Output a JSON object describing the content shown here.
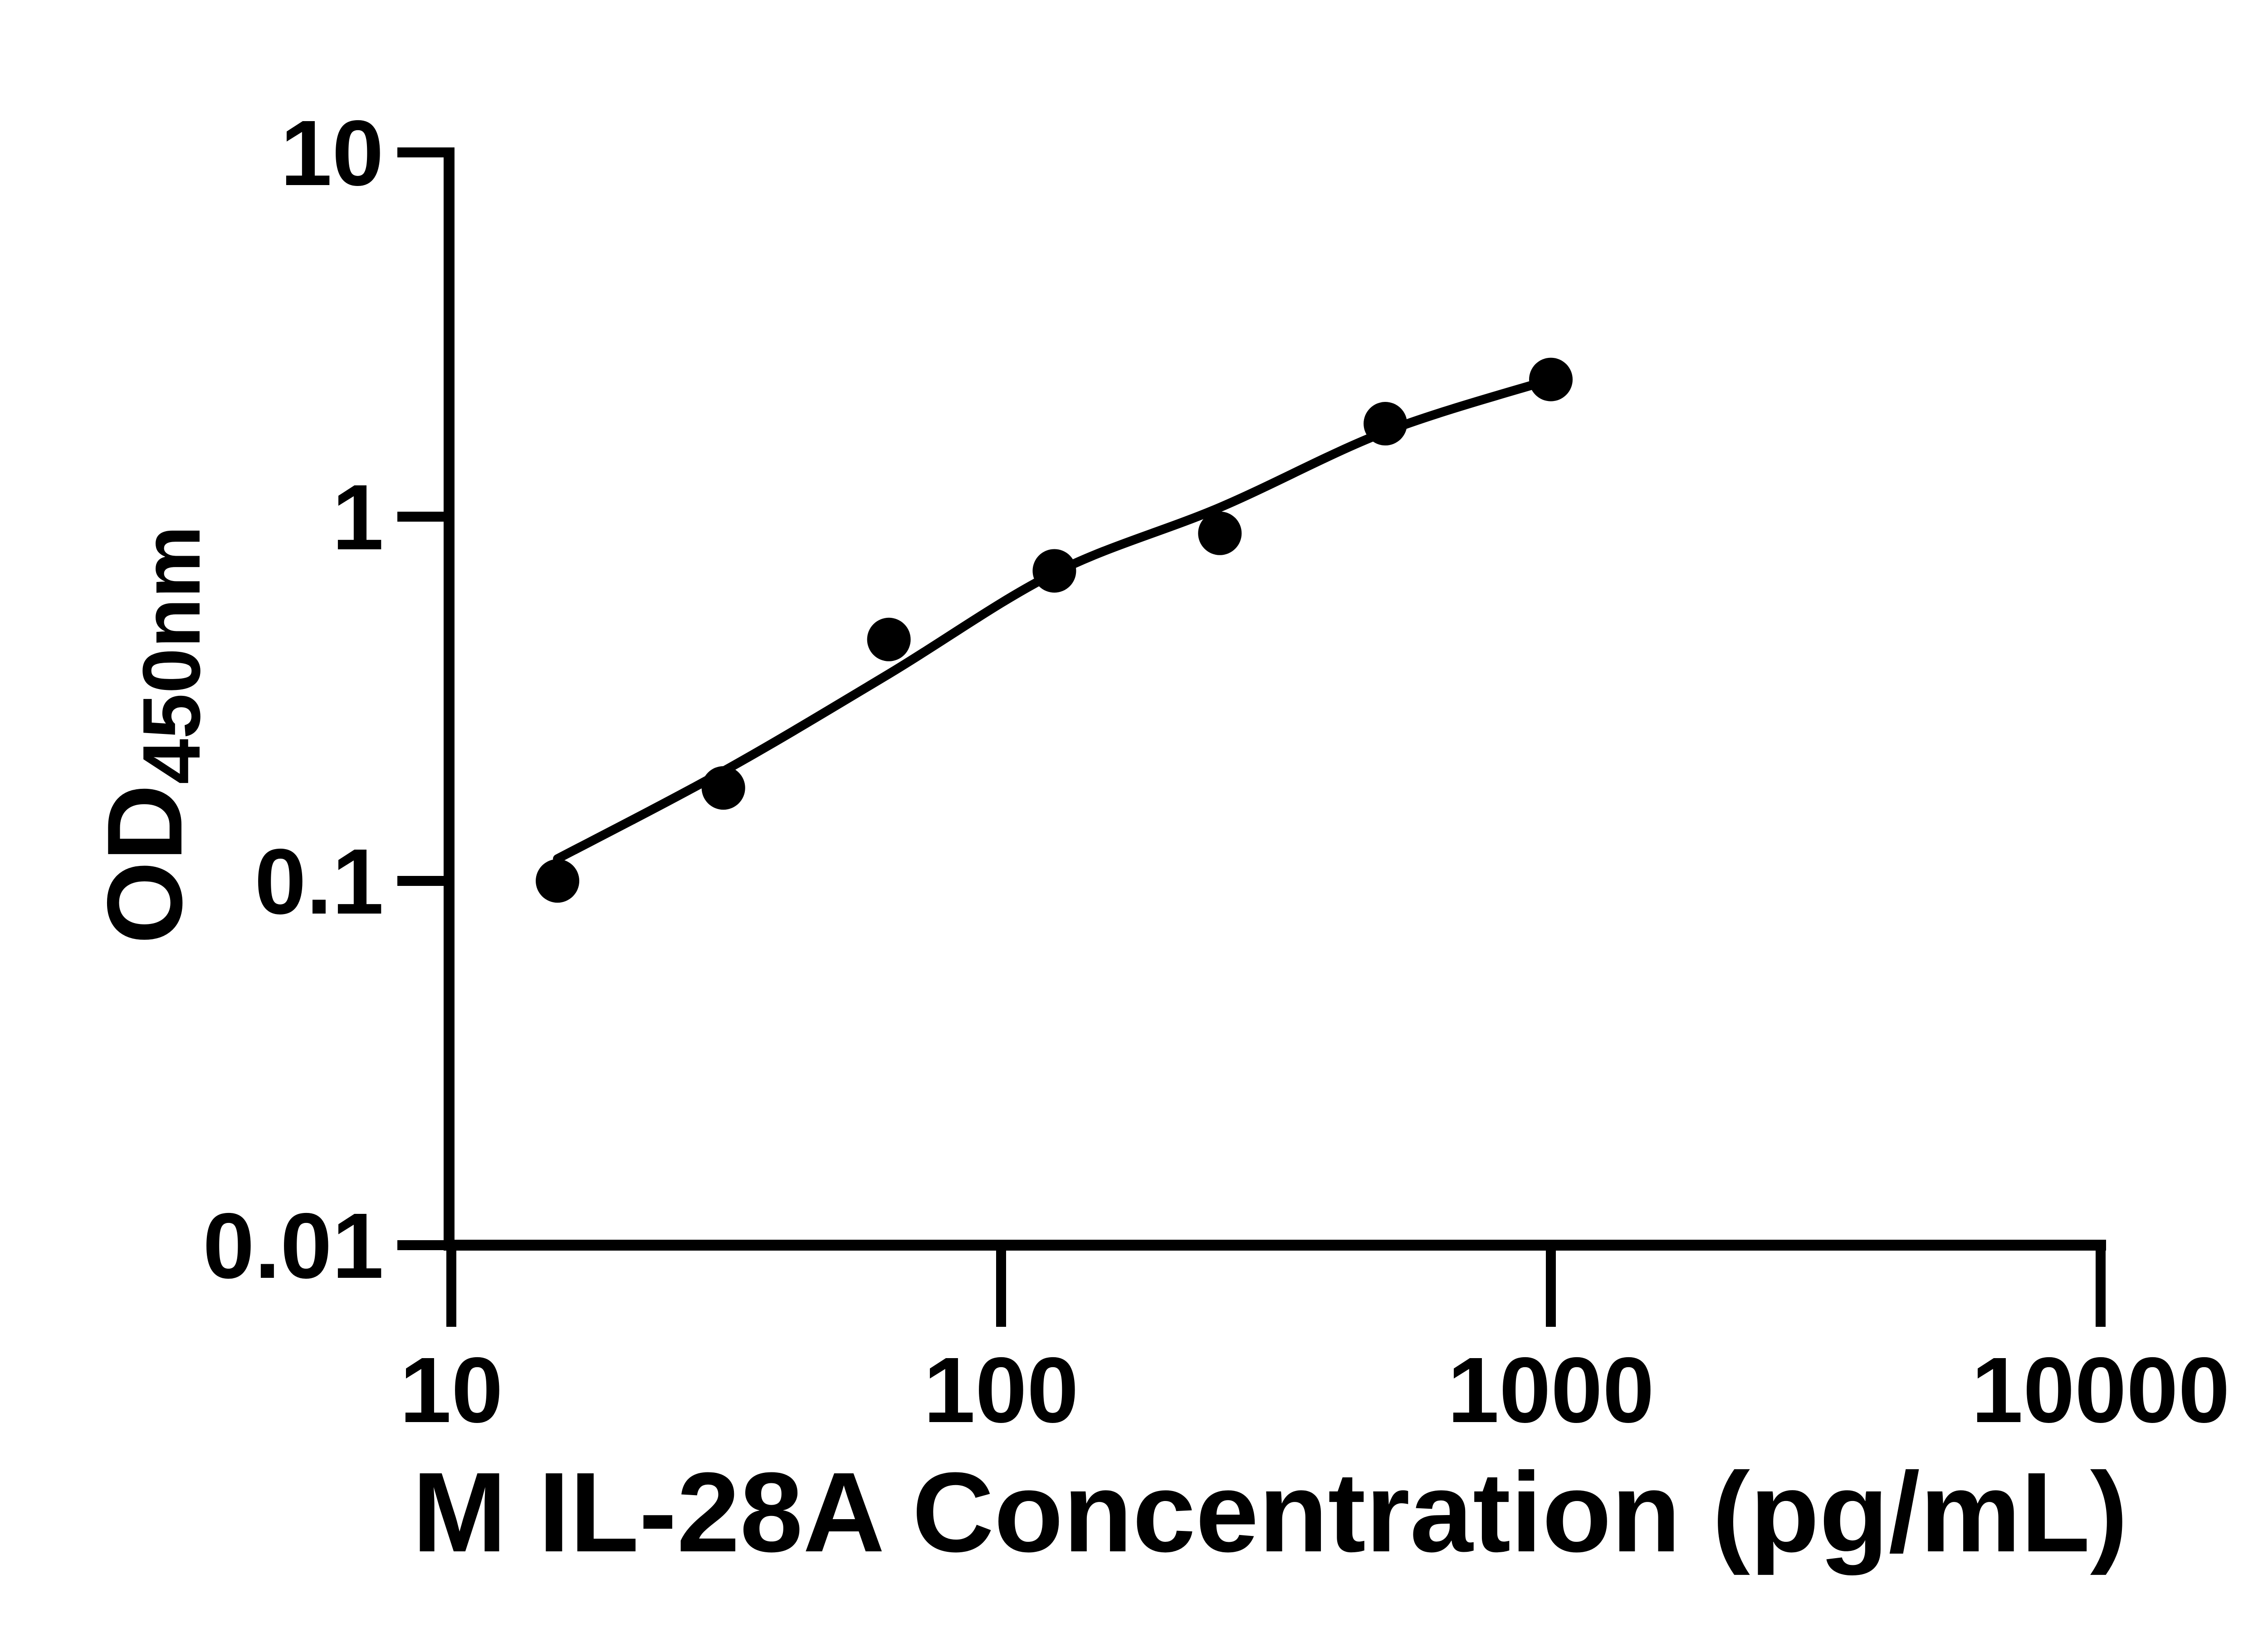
{
  "figure": {
    "background_color": "#ffffff",
    "ink_color": "#000000",
    "kind": "ELISA standard curve"
  },
  "chart_data": {
    "type": "scatter",
    "title": "",
    "xlabel": "M IL-28A Concentration (pg/mL)",
    "ylabel": "OD450nm",
    "ylabel_parts": {
      "main": "OD",
      "sub": "450nm"
    },
    "x_scale": "log10",
    "y_scale": "log10",
    "xlim": [
      10,
      10000
    ],
    "ylim": [
      0.01,
      10
    ],
    "grid": false,
    "legend": false,
    "x_ticks": [
      {
        "value": 10,
        "label": "10"
      },
      {
        "value": 100,
        "label": "100"
      },
      {
        "value": 1000,
        "label": "1000"
      },
      {
        "value": 10000,
        "label": "10000"
      }
    ],
    "y_ticks": [
      {
        "value": 10,
        "label": "10"
      },
      {
        "value": 1,
        "label": "1"
      },
      {
        "value": 0.1,
        "label": "0.1"
      },
      {
        "value": 0.01,
        "label": "0.01"
      }
    ],
    "series": [
      {
        "name": "standard-curve-data-points",
        "marker": "filled-circle",
        "color": "#000000",
        "points": [
          {
            "x": 15.6,
            "y": 0.1
          },
          {
            "x": 31.25,
            "y": 0.18
          },
          {
            "x": 62.5,
            "y": 0.46
          },
          {
            "x": 125,
            "y": 0.71
          },
          {
            "x": 250,
            "y": 0.9
          },
          {
            "x": 500,
            "y": 1.8
          },
          {
            "x": 1000,
            "y": 2.38
          }
        ]
      }
    ],
    "fit_curve": {
      "name": "four-parameter-fit-line",
      "color": "#000000",
      "points": [
        {
          "x": 15.6,
          "y": 0.115
        },
        {
          "x": 31.25,
          "y": 0.2
        },
        {
          "x": 62.5,
          "y": 0.37
        },
        {
          "x": 125,
          "y": 0.7
        },
        {
          "x": 250,
          "y": 1.06
        },
        {
          "x": 500,
          "y": 1.71
        },
        {
          "x": 1000,
          "y": 2.38
        }
      ]
    }
  }
}
